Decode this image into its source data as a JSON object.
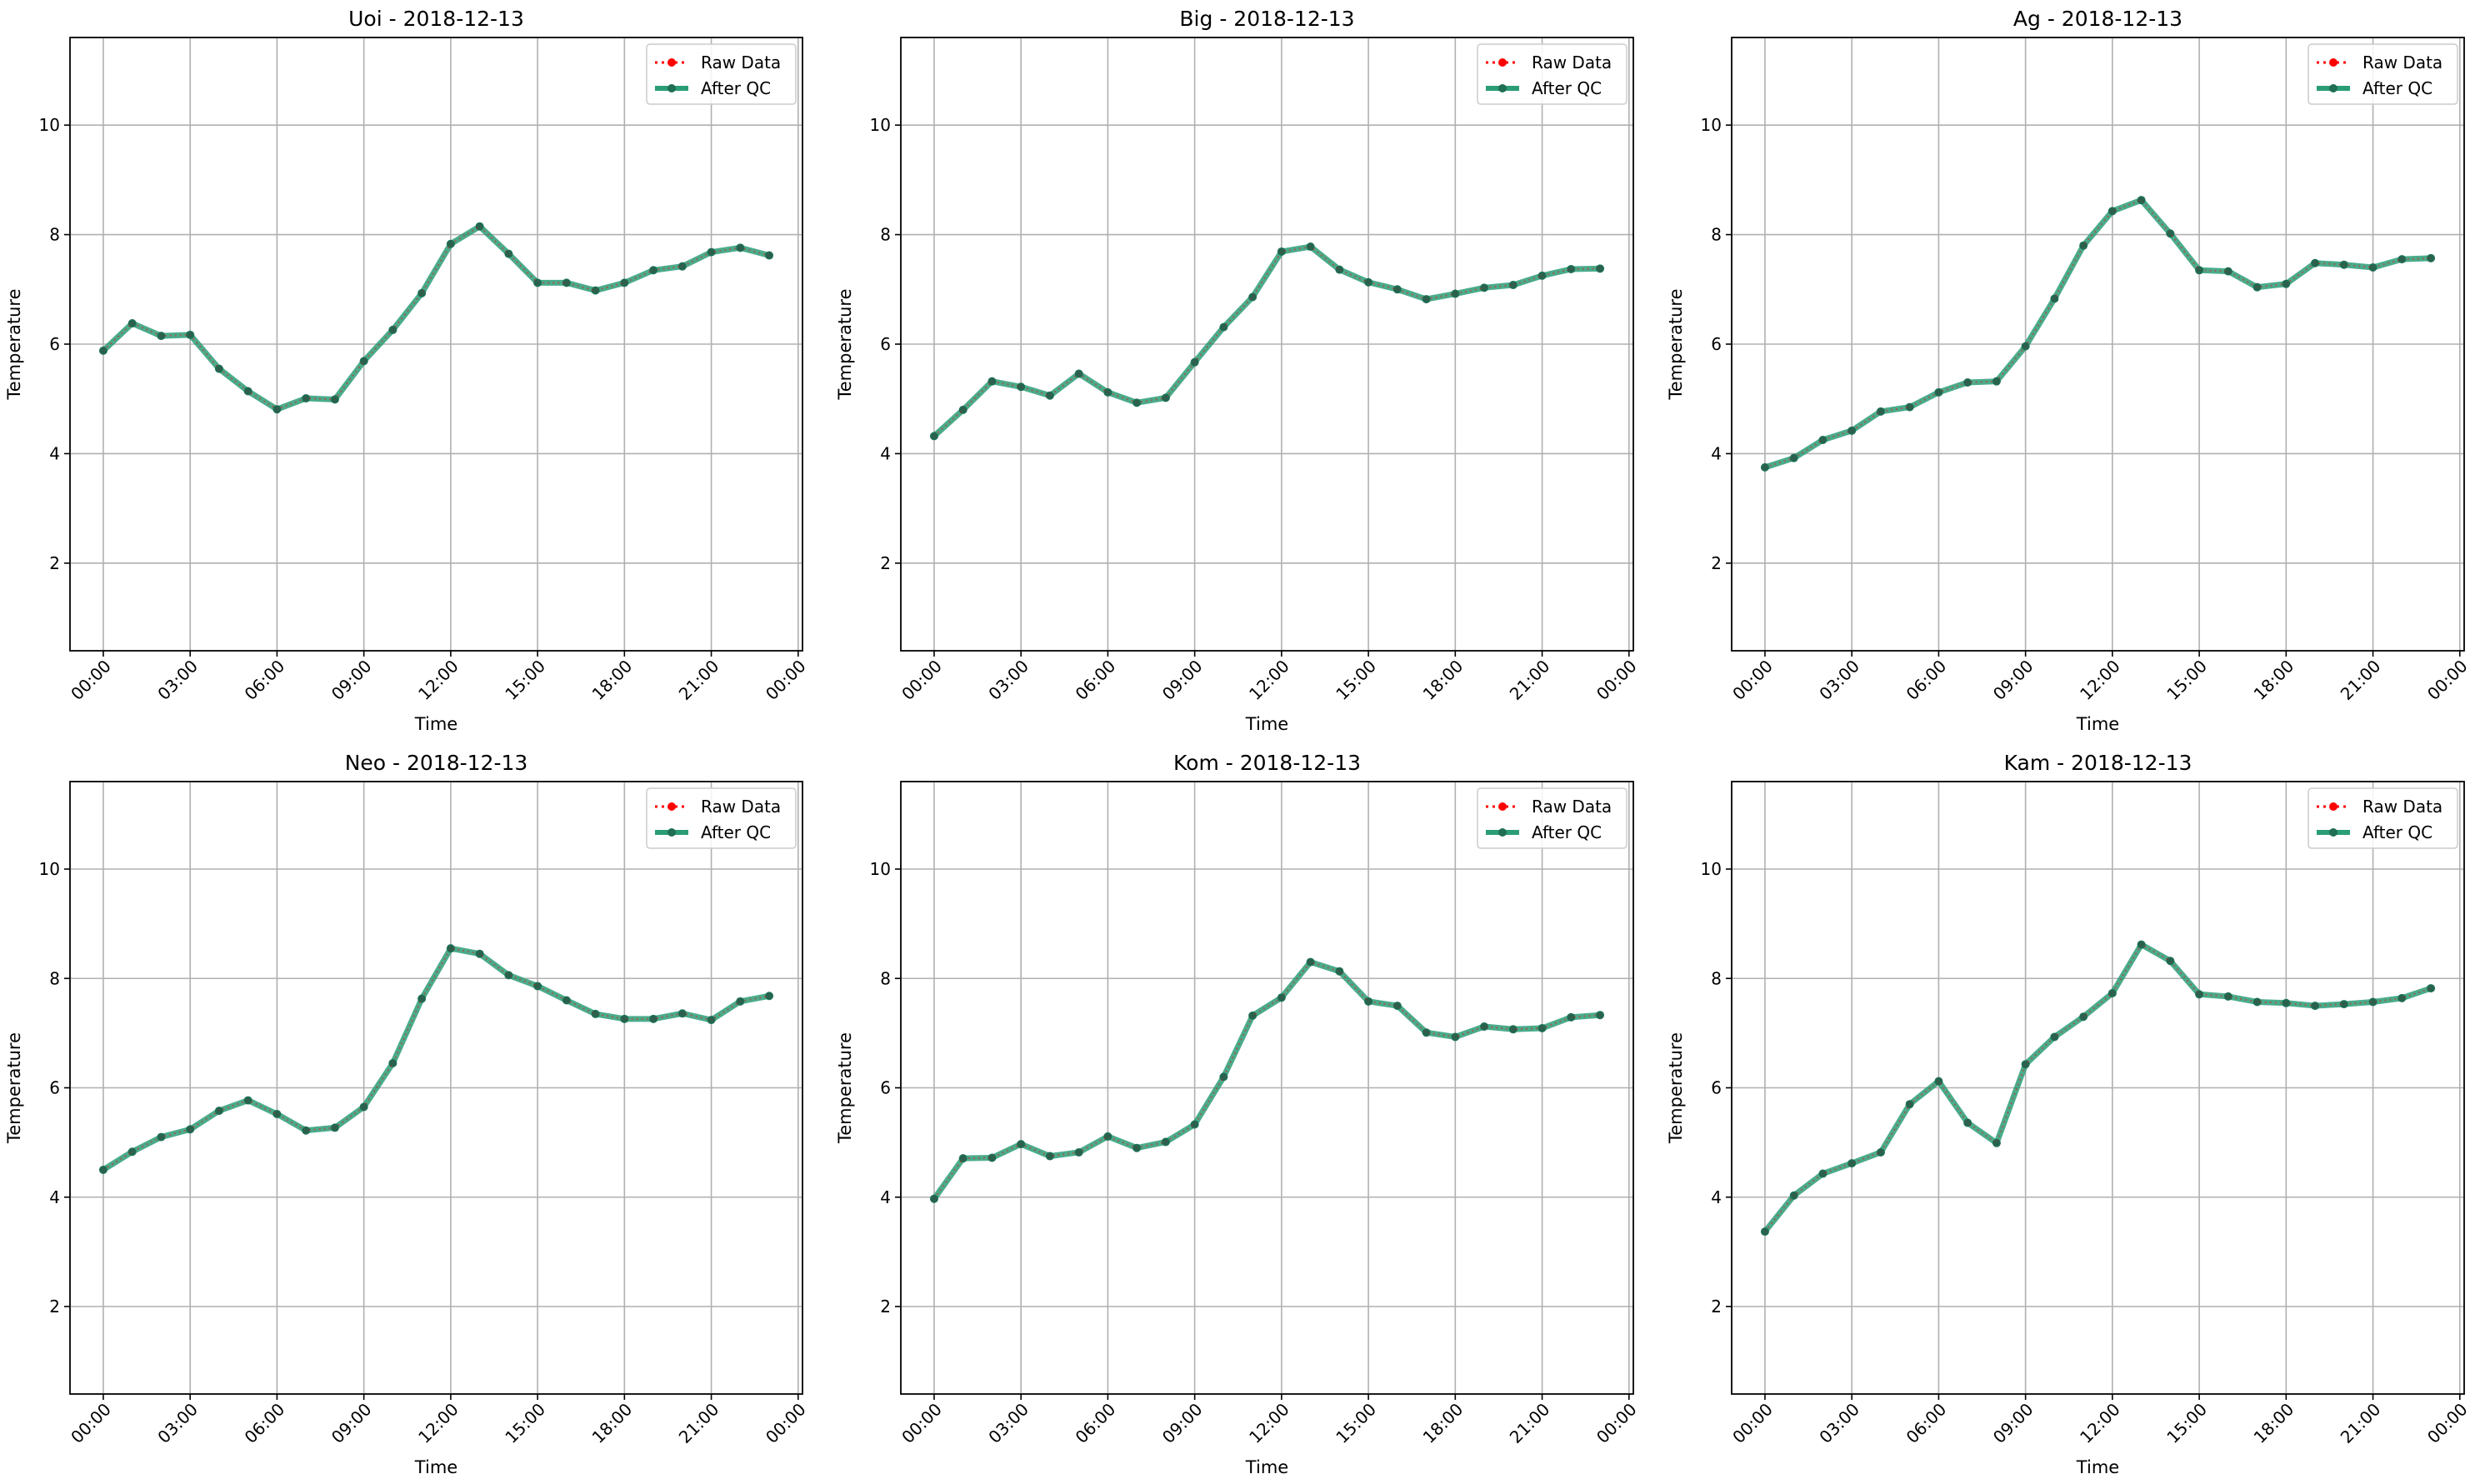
{
  "figure": {
    "background": "#ffffff",
    "raw_color": "#ff0000",
    "qc_color": "#2a9d78",
    "qc_marker_color": "#1f6e55",
    "grid_color": "#b0b0b0"
  },
  "chart_data": [
    {
      "type": "line",
      "title": "Uoi - 2018-12-13",
      "xlabel": "Time",
      "ylabel": "Temperature",
      "x": [
        "00:00",
        "01:00",
        "02:00",
        "03:00",
        "04:00",
        "05:00",
        "06:00",
        "07:00",
        "08:00",
        "09:00",
        "10:00",
        "11:00",
        "12:00",
        "13:00",
        "14:00",
        "15:00",
        "16:00",
        "17:00",
        "18:00",
        "19:00",
        "20:00",
        "21:00",
        "22:00",
        "23:00"
      ],
      "x_ticks": [
        "00:00",
        "03:00",
        "06:00",
        "09:00",
        "12:00",
        "15:00",
        "18:00",
        "21:00",
        "00:00"
      ],
      "y_ticks": [
        2,
        4,
        6,
        8,
        10
      ],
      "ylim": [
        0.4,
        11.6
      ],
      "grid": true,
      "legend": "top-right",
      "series": [
        {
          "name": "Raw Data",
          "style": "dotted",
          "values": [
            5.88,
            6.38,
            6.15,
            6.17,
            5.55,
            5.14,
            4.81,
            5.01,
            4.99,
            5.69,
            6.26,
            6.93,
            7.83,
            8.15,
            7.65,
            7.12,
            7.12,
            6.98,
            7.12,
            7.35,
            7.42,
            7.68,
            7.76,
            7.62
          ]
        },
        {
          "name": "After QC",
          "style": "solid",
          "values": [
            5.88,
            6.38,
            6.15,
            6.17,
            5.55,
            5.14,
            4.81,
            5.01,
            4.99,
            5.69,
            6.26,
            6.93,
            7.83,
            8.15,
            7.65,
            7.12,
            7.12,
            6.98,
            7.12,
            7.35,
            7.42,
            7.68,
            7.76,
            7.62
          ]
        }
      ]
    },
    {
      "type": "line",
      "title": "Big - 2018-12-13",
      "xlabel": "Time",
      "ylabel": "Temperature",
      "x": [
        "00:00",
        "01:00",
        "02:00",
        "03:00",
        "04:00",
        "05:00",
        "06:00",
        "07:00",
        "08:00",
        "09:00",
        "10:00",
        "11:00",
        "12:00",
        "13:00",
        "14:00",
        "15:00",
        "16:00",
        "17:00",
        "18:00",
        "19:00",
        "20:00",
        "21:00",
        "22:00",
        "23:00"
      ],
      "x_ticks": [
        "00:00",
        "03:00",
        "06:00",
        "09:00",
        "12:00",
        "15:00",
        "18:00",
        "21:00",
        "00:00"
      ],
      "y_ticks": [
        2,
        4,
        6,
        8,
        10
      ],
      "ylim": [
        0.4,
        11.6
      ],
      "grid": true,
      "legend": "top-right",
      "series": [
        {
          "name": "Raw Data",
          "style": "dotted",
          "values": [
            4.32,
            4.8,
            5.32,
            5.22,
            5.06,
            5.46,
            5.12,
            4.93,
            5.02,
            5.67,
            6.31,
            6.86,
            7.69,
            7.78,
            7.36,
            7.13,
            7.0,
            6.82,
            6.92,
            7.03,
            7.08,
            7.25,
            7.37,
            7.38
          ]
        },
        {
          "name": "After QC",
          "style": "solid",
          "values": [
            4.32,
            4.8,
            5.32,
            5.22,
            5.06,
            5.46,
            5.12,
            4.93,
            5.02,
            5.67,
            6.31,
            6.86,
            7.69,
            7.78,
            7.36,
            7.13,
            7.0,
            6.82,
            6.92,
            7.03,
            7.08,
            7.25,
            7.37,
            7.38
          ]
        }
      ]
    },
    {
      "type": "line",
      "title": "Ag - 2018-12-13",
      "xlabel": "Time",
      "ylabel": "Temperature",
      "x": [
        "00:00",
        "01:00",
        "02:00",
        "03:00",
        "04:00",
        "05:00",
        "06:00",
        "07:00",
        "08:00",
        "09:00",
        "10:00",
        "11:00",
        "12:00",
        "13:00",
        "14:00",
        "15:00",
        "16:00",
        "17:00",
        "18:00",
        "19:00",
        "20:00",
        "21:00",
        "22:00",
        "23:00"
      ],
      "x_ticks": [
        "00:00",
        "03:00",
        "06:00",
        "09:00",
        "12:00",
        "15:00",
        "18:00",
        "21:00",
        "00:00"
      ],
      "y_ticks": [
        2,
        4,
        6,
        8,
        10
      ],
      "ylim": [
        0.4,
        11.6
      ],
      "grid": true,
      "legend": "top-right",
      "series": [
        {
          "name": "Raw Data",
          "style": "dotted",
          "values": [
            3.75,
            3.92,
            4.25,
            4.42,
            4.77,
            4.85,
            5.12,
            5.3,
            5.32,
            5.96,
            6.83,
            7.8,
            8.43,
            8.63,
            8.02,
            7.35,
            7.33,
            7.04,
            7.1,
            7.48,
            7.45,
            7.4,
            7.55,
            7.57
          ]
        },
        {
          "name": "After QC",
          "style": "solid",
          "values": [
            3.75,
            3.92,
            4.25,
            4.42,
            4.77,
            4.85,
            5.12,
            5.3,
            5.32,
            5.96,
            6.83,
            7.8,
            8.43,
            8.63,
            8.02,
            7.35,
            7.33,
            7.04,
            7.1,
            7.48,
            7.45,
            7.4,
            7.55,
            7.57
          ]
        }
      ]
    },
    {
      "type": "line",
      "title": "Neo - 2018-12-13",
      "xlabel": "Time",
      "ylabel": "Temperature",
      "x": [
        "00:00",
        "01:00",
        "02:00",
        "03:00",
        "04:00",
        "05:00",
        "06:00",
        "07:00",
        "08:00",
        "09:00",
        "10:00",
        "11:00",
        "12:00",
        "13:00",
        "14:00",
        "15:00",
        "16:00",
        "17:00",
        "18:00",
        "19:00",
        "20:00",
        "21:00",
        "22:00",
        "23:00"
      ],
      "x_ticks": [
        "00:00",
        "03:00",
        "06:00",
        "09:00",
        "12:00",
        "15:00",
        "18:00",
        "21:00",
        "00:00"
      ],
      "y_ticks": [
        2,
        4,
        6,
        8,
        10
      ],
      "ylim": [
        0.4,
        11.6
      ],
      "grid": true,
      "legend": "top-right",
      "series": [
        {
          "name": "Raw Data",
          "style": "dotted",
          "values": [
            4.5,
            4.83,
            5.1,
            5.24,
            5.58,
            5.77,
            5.52,
            5.22,
            5.27,
            5.65,
            6.45,
            7.63,
            8.55,
            8.45,
            8.06,
            7.86,
            7.6,
            7.35,
            7.26,
            7.26,
            7.36,
            7.24,
            7.58,
            7.68
          ]
        },
        {
          "name": "After QC",
          "style": "solid",
          "values": [
            4.5,
            4.83,
            5.1,
            5.24,
            5.58,
            5.77,
            5.52,
            5.22,
            5.27,
            5.65,
            6.45,
            7.63,
            8.55,
            8.45,
            8.06,
            7.86,
            7.6,
            7.35,
            7.26,
            7.26,
            7.36,
            7.24,
            7.58,
            7.68
          ]
        }
      ]
    },
    {
      "type": "line",
      "title": "Kom - 2018-12-13",
      "xlabel": "Time",
      "ylabel": "Temperature",
      "x": [
        "00:00",
        "01:00",
        "02:00",
        "03:00",
        "04:00",
        "05:00",
        "06:00",
        "07:00",
        "08:00",
        "09:00",
        "10:00",
        "11:00",
        "12:00",
        "13:00",
        "14:00",
        "15:00",
        "16:00",
        "17:00",
        "18:00",
        "19:00",
        "20:00",
        "21:00",
        "22:00",
        "23:00"
      ],
      "x_ticks": [
        "00:00",
        "03:00",
        "06:00",
        "09:00",
        "12:00",
        "15:00",
        "18:00",
        "21:00",
        "00:00"
      ],
      "y_ticks": [
        2,
        4,
        6,
        8,
        10
      ],
      "ylim": [
        0.4,
        11.6
      ],
      "grid": true,
      "legend": "top-right",
      "series": [
        {
          "name": "Raw Data",
          "style": "dotted",
          "values": [
            3.97,
            4.71,
            4.72,
            4.97,
            4.75,
            4.82,
            5.11,
            4.9,
            5.01,
            5.33,
            6.2,
            7.32,
            7.65,
            8.3,
            8.13,
            7.58,
            7.5,
            7.01,
            6.93,
            7.12,
            7.07,
            7.09,
            7.29,
            7.33
          ]
        },
        {
          "name": "After QC",
          "style": "solid",
          "values": [
            3.97,
            4.71,
            4.72,
            4.97,
            4.75,
            4.82,
            5.11,
            4.9,
            5.01,
            5.33,
            6.2,
            7.32,
            7.65,
            8.3,
            8.13,
            7.58,
            7.5,
            7.01,
            6.93,
            7.12,
            7.07,
            7.09,
            7.29,
            7.33
          ]
        }
      ]
    },
    {
      "type": "line",
      "title": "Kam - 2018-12-13",
      "xlabel": "Time",
      "ylabel": "Temperature",
      "x": [
        "00:00",
        "01:00",
        "02:00",
        "03:00",
        "04:00",
        "05:00",
        "06:00",
        "07:00",
        "08:00",
        "09:00",
        "10:00",
        "11:00",
        "12:00",
        "13:00",
        "14:00",
        "15:00",
        "16:00",
        "17:00",
        "18:00",
        "19:00",
        "20:00",
        "21:00",
        "22:00",
        "23:00"
      ],
      "x_ticks": [
        "00:00",
        "03:00",
        "06:00",
        "09:00",
        "12:00",
        "15:00",
        "18:00",
        "21:00",
        "00:00"
      ],
      "y_ticks": [
        2,
        4,
        6,
        8,
        10
      ],
      "ylim": [
        0.4,
        11.6
      ],
      "grid": true,
      "legend": "top-right",
      "series": [
        {
          "name": "Raw Data",
          "style": "dotted",
          "values": [
            3.37,
            4.03,
            4.43,
            4.62,
            4.82,
            5.7,
            6.12,
            5.36,
            4.99,
            6.43,
            6.93,
            7.3,
            7.73,
            8.62,
            8.32,
            7.71,
            7.67,
            7.57,
            7.55,
            7.5,
            7.53,
            7.57,
            7.64,
            7.82
          ]
        },
        {
          "name": "After QC",
          "style": "solid",
          "values": [
            3.37,
            4.03,
            4.43,
            4.62,
            4.82,
            5.7,
            6.12,
            5.36,
            4.99,
            6.43,
            6.93,
            7.3,
            7.73,
            8.62,
            8.32,
            7.71,
            7.67,
            7.57,
            7.55,
            7.5,
            7.53,
            7.57,
            7.64,
            7.82
          ]
        }
      ]
    }
  ]
}
